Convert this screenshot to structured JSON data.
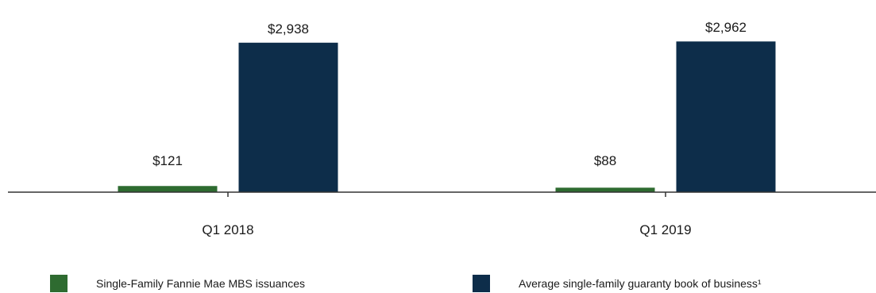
{
  "chart_data": {
    "type": "bar",
    "categories": [
      "Q1 2018",
      "Q1 2019"
    ],
    "series": [
      {
        "name": "Single-Family Fannie Mae MBS issuances",
        "values": [
          121,
          88
        ],
        "labels": [
          "$121",
          "$88"
        ],
        "color": "#2e6b30"
      },
      {
        "name": "Average single-family guaranty book of business¹",
        "values": [
          2938,
          2962
        ],
        "labels": [
          "$2,938",
          "$2,962"
        ],
        "color": "#0d2d4a"
      }
    ],
    "ylim": [
      0,
      3000
    ],
    "grid": false,
    "legend": "bottom"
  }
}
